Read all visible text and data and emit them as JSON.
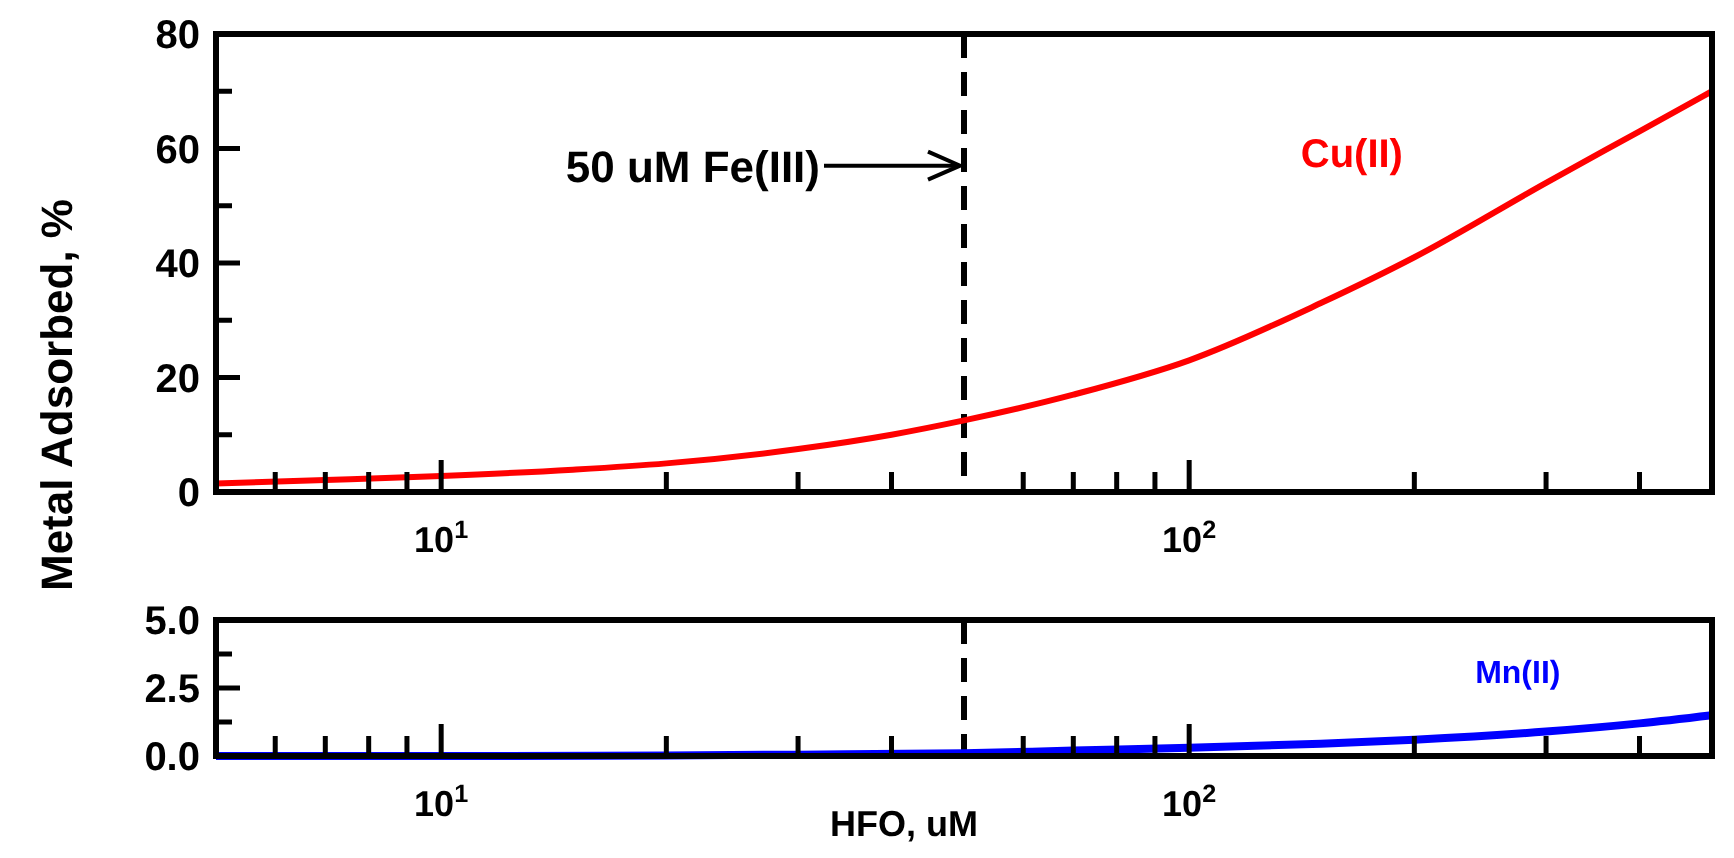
{
  "chart_data": [
    {
      "type": "line",
      "ylabel": "Metal Adsorbed, %",
      "x": [
        5,
        7,
        10,
        15,
        20,
        30,
        40,
        50,
        70,
        100,
        150,
        200,
        300,
        400,
        500
      ],
      "series": [
        {
          "name": "Cu(II)",
          "color": "#ff0000",
          "values": [
            1.5,
            2.1,
            2.8,
            3.9,
            5,
            7.5,
            10,
            12.5,
            17,
            23,
            33,
            41,
            54,
            63,
            70
          ]
        }
      ],
      "log": "x",
      "xlim": [
        5,
        500
      ],
      "ylim": [
        0,
        80
      ],
      "xticks": [
        {
          "value": 6,
          "label": null
        },
        {
          "value": 7,
          "label": null
        },
        {
          "value": 8,
          "label": null
        },
        {
          "value": 9,
          "label": null
        },
        {
          "value": 10,
          "label": "10$^{1}$"
        },
        {
          "value": 20,
          "label": null
        },
        {
          "value": 30,
          "label": null
        },
        {
          "value": 40,
          "label": null
        },
        {
          "value": 60,
          "label": null
        },
        {
          "value": 70,
          "label": null
        },
        {
          "value": 80,
          "label": null
        },
        {
          "value": 90,
          "label": null
        },
        {
          "value": 100,
          "label": "10$^{2}$"
        },
        {
          "value": 200,
          "label": null
        },
        {
          "value": 300,
          "label": null
        },
        {
          "value": 400,
          "label": null
        }
      ],
      "yticks": [
        0,
        {
          "value": 10,
          "label": null
        },
        20,
        {
          "value": 30,
          "label": null
        },
        40,
        {
          "value": 50,
          "label": null
        },
        60,
        {
          "value": 70,
          "label": null
        },
        80
      ],
      "ref_lines": [
        {
          "axis": "x",
          "value": 50,
          "label": null,
          "color": "#000000",
          "line_style": "dashed"
        }
      ],
      "annotations": [
        {
          "text": "50 uM Fe(III)",
          "x": 50,
          "y": 57
        }
      ],
      "grid": false,
      "marker": "none",
      "line_style": "solid"
    },
    {
      "type": "line",
      "xlabel": "HFO, uM",
      "x": [
        5,
        10,
        20,
        30,
        50,
        70,
        100,
        150,
        200,
        300,
        400,
        500
      ],
      "series": [
        {
          "name": "Mn(II)",
          "color": "#0000ff",
          "values": [
            0,
            0,
            0.02,
            0.05,
            0.1,
            0.2,
            0.3,
            0.45,
            0.6,
            0.9,
            1.2,
            1.5
          ]
        }
      ],
      "log": "x",
      "xlim": [
        5,
        500
      ],
      "ylim": [
        0,
        5
      ],
      "xticks": [
        {
          "value": 6,
          "label": null
        },
        {
          "value": 7,
          "label": null
        },
        {
          "value": 8,
          "label": null
        },
        {
          "value": 9,
          "label": null
        },
        {
          "value": 10,
          "label": "10$^{1}$"
        },
        {
          "value": 20,
          "label": null
        },
        {
          "value": 30,
          "label": null
        },
        {
          "value": 40,
          "label": null
        },
        {
          "value": 60,
          "label": null
        },
        {
          "value": 70,
          "label": null
        },
        {
          "value": 80,
          "label": null
        },
        {
          "value": 90,
          "label": null
        },
        {
          "value": 100,
          "label": "10$^{2}$"
        },
        {
          "value": 200,
          "label": null
        },
        {
          "value": 300,
          "label": null
        },
        {
          "value": 400,
          "label": null
        }
      ],
      "yticks": [
        {
          "value": 0,
          "label": "0.0"
        },
        {
          "value": 1.25,
          "label": null
        },
        {
          "value": 2.5,
          "label": "2.5"
        },
        {
          "value": 3.75,
          "label": null
        },
        {
          "value": 5,
          "label": "5.0"
        }
      ],
      "ref_lines": [
        {
          "axis": "x",
          "value": 50,
          "label": null,
          "color": "#000000",
          "line_style": "dashed"
        }
      ],
      "grid": false,
      "marker": "none",
      "line_style": "solid"
    }
  ]
}
